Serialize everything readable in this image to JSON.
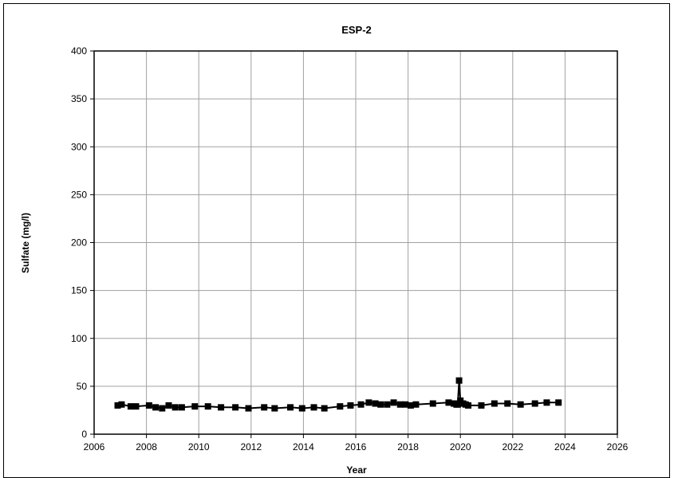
{
  "chart_data": {
    "type": "line",
    "title": "ESP-2",
    "xlabel": "Year",
    "ylabel": "Sulfate (mg/l)",
    "xlim": [
      2006,
      2026
    ],
    "ylim": [
      0,
      400
    ],
    "x_ticks": [
      "2006",
      "2008",
      "2010",
      "2012",
      "2014",
      "2016",
      "2018",
      "2020",
      "2022",
      "2024",
      "2026"
    ],
    "y_ticks": [
      "0",
      "50",
      "100",
      "150",
      "200",
      "250",
      "300",
      "350",
      "400"
    ],
    "grid": true,
    "series": [
      {
        "color": "#000000",
        "marker": "square",
        "x": [
          2006.9,
          2007.05,
          2007.4,
          2007.6,
          2008.1,
          2008.35,
          2008.6,
          2008.85,
          2009.1,
          2009.35,
          2009.85,
          2010.35,
          2010.85,
          2011.4,
          2011.9,
          2012.5,
          2012.9,
          2013.5,
          2013.95,
          2014.4,
          2014.8,
          2015.4,
          2015.8,
          2016.2,
          2016.5,
          2016.75,
          2016.95,
          2017.2,
          2017.45,
          2017.7,
          2017.9,
          2018.1,
          2018.3,
          2018.95,
          2019.55,
          2019.75,
          2019.85,
          2019.9,
          2019.95,
          2020.0,
          2020.1,
          2020.2,
          2020.3,
          2020.8,
          2021.3,
          2021.8,
          2022.3,
          2022.85,
          2023.3,
          2023.75
        ],
        "y": [
          30,
          31,
          29,
          29,
          30,
          28,
          27,
          30,
          28,
          28,
          29,
          29,
          28,
          28,
          27,
          28,
          27,
          28,
          27,
          28,
          27,
          29,
          30,
          31,
          33,
          32,
          31,
          31,
          33,
          31,
          31,
          30,
          31,
          32,
          33,
          32,
          31,
          31,
          56,
          35,
          32,
          31,
          30,
          30,
          32,
          32,
          31,
          32,
          33,
          33
        ]
      }
    ]
  }
}
